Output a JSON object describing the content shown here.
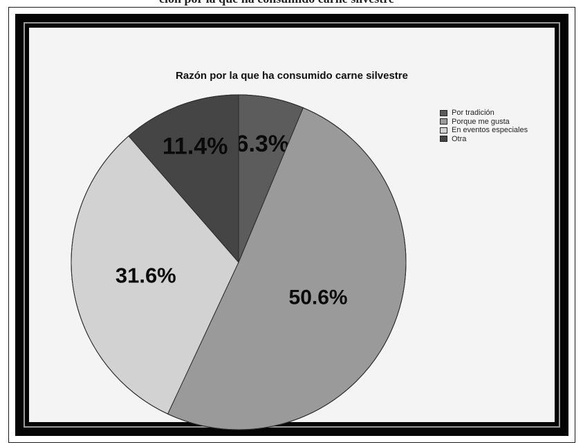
{
  "chart_data": {
    "type": "pie",
    "title": "Razón por la que ha consumido carne silvestre",
    "categories": [
      "Por tradición",
      "Porque me gusta",
      "En eventos especiales",
      "Otra"
    ],
    "values": [
      6.3,
      50.6,
      31.6,
      11.4
    ],
    "labels": [
      "6.3%",
      "50.6%",
      "31.6%",
      "11.4%"
    ],
    "colors": [
      "#5c5c5c",
      "#9a9a9a",
      "#d2d2d2",
      "#454545"
    ],
    "legend_position": "top-right",
    "start_angle_deg": 0,
    "direction": "clockwise"
  },
  "header_text": "ción por la que ha consumido carne silvestre"
}
